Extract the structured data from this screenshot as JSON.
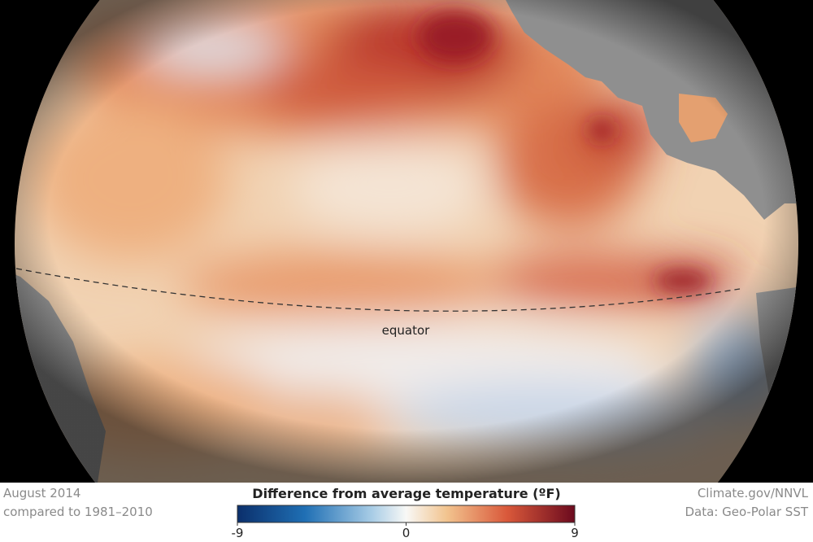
{
  "caption": {
    "date": "August 2014",
    "baseline": "compared to 1981–2010"
  },
  "legend": {
    "title": "Difference from average temperature (ºF)",
    "range": [
      -9,
      9
    ],
    "ticks": [
      -9,
      0,
      9
    ]
  },
  "credit": {
    "source": "Climate.gov/NNVL",
    "data": "Data: Geo-Polar SST"
  },
  "map": {
    "equator_label": "equator"
  }
}
